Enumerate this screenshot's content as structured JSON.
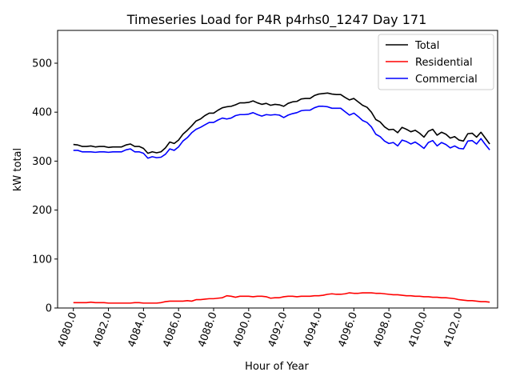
{
  "chart_data": {
    "type": "line",
    "title": "Timeseries Load for P4R p4rhs0_1247  Day 171",
    "xlabel": "Hour of Year",
    "ylabel": "kW total",
    "xlim": [
      4079.1,
      4104.2
    ],
    "ylim": [
      0,
      567
    ],
    "xticks": [
      4080,
      4082,
      4084,
      4086,
      4088,
      4090,
      4092,
      4094,
      4096,
      4098,
      4100,
      4102
    ],
    "xtick_labels": [
      "4080.0",
      "4082.0",
      "4084.0",
      "4086.0",
      "4088.0",
      "4090.0",
      "4092.0",
      "4094.0",
      "4096.0",
      "4098.0",
      "4100.0",
      "4102.0"
    ],
    "yticks": [
      0,
      100,
      200,
      300,
      400,
      500
    ],
    "ytick_labels": [
      "0",
      "100",
      "200",
      "300",
      "400",
      "500"
    ],
    "legend_position": "top-right",
    "x_start": 4080,
    "x_step": 0.25,
    "series": [
      {
        "name": "Total",
        "color": "#000000",
        "values": [
          334,
          333,
          330,
          330,
          331,
          329,
          330,
          330,
          328,
          329,
          329,
          329,
          333,
          335,
          330,
          330,
          326,
          316,
          319,
          317,
          319,
          327,
          339,
          336,
          343,
          355,
          363,
          372,
          382,
          386,
          393,
          398,
          398,
          404,
          409,
          411,
          412,
          415,
          419,
          419,
          420,
          423,
          419,
          416,
          418,
          414,
          416,
          415,
          412,
          418,
          421,
          422,
          427,
          428,
          428,
          434,
          437,
          438,
          439,
          437,
          436,
          436,
          430,
          425,
          428,
          421,
          414,
          410,
          400,
          385,
          380,
          370,
          364,
          365,
          358,
          369,
          365,
          360,
          363,
          357,
          349,
          361,
          365,
          353,
          359,
          355,
          347,
          350,
          343,
          341,
          356,
          357,
          349,
          359,
          347,
          335
        ]
      },
      {
        "name": "Residential",
        "color": "#ff0000",
        "values": [
          11,
          11,
          11,
          11,
          12,
          11,
          11,
          11,
          10,
          10,
          10,
          10,
          10,
          10,
          11,
          11,
          10,
          10,
          10,
          10,
          11,
          13,
          14,
          14,
          14,
          14,
          15,
          14,
          17,
          17,
          18,
          19,
          19,
          20,
          21,
          25,
          24,
          22,
          24,
          24,
          24,
          23,
          24,
          24,
          23,
          20,
          21,
          21,
          23,
          24,
          24,
          23,
          24,
          24,
          24,
          25,
          25,
          26,
          28,
          29,
          28,
          28,
          29,
          31,
          30,
          30,
          31,
          31,
          31,
          30,
          30,
          29,
          28,
          27,
          27,
          26,
          25,
          25,
          24,
          24,
          23,
          23,
          22,
          22,
          21,
          21,
          20,
          19,
          17,
          16,
          15,
          15,
          14,
          13,
          13,
          12
        ]
      },
      {
        "name": "Commercial",
        "color": "#0000ff",
        "values": [
          322,
          322,
          319,
          319,
          319,
          318,
          319,
          319,
          318,
          319,
          319,
          319,
          323,
          325,
          319,
          319,
          316,
          306,
          309,
          307,
          308,
          314,
          325,
          322,
          329,
          341,
          348,
          358,
          365,
          369,
          374,
          379,
          379,
          384,
          388,
          386,
          388,
          393,
          395,
          395,
          396,
          399,
          395,
          392,
          395,
          394,
          395,
          394,
          389,
          394,
          397,
          399,
          403,
          404,
          404,
          409,
          412,
          412,
          411,
          408,
          408,
          408,
          401,
          394,
          398,
          391,
          383,
          379,
          370,
          355,
          350,
          341,
          336,
          338,
          331,
          343,
          340,
          335,
          339,
          333,
          326,
          338,
          342,
          331,
          338,
          334,
          327,
          331,
          326,
          325,
          341,
          342,
          335,
          346,
          334,
          323
        ]
      }
    ]
  }
}
